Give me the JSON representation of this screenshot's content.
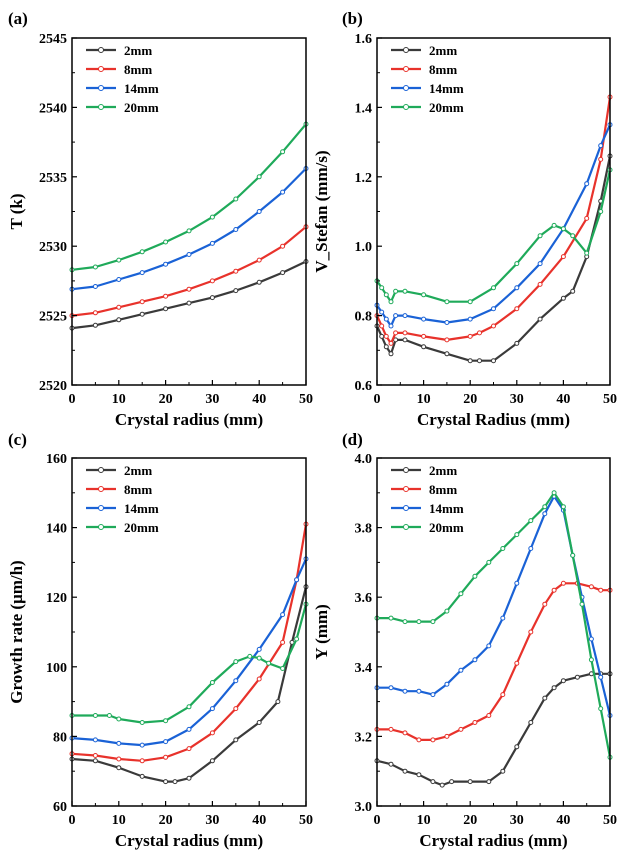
{
  "figure": {
    "background": "#ffffff"
  },
  "panel_labels": [
    "(a)",
    "(b)",
    "(c)",
    "(d)"
  ],
  "chart_data": [
    {
      "type": "line",
      "panel_label": "(a)",
      "xlabel": "Crystal radius (mm)",
      "ylabel": "T (k)",
      "xlim": [
        0,
        50
      ],
      "ylim": [
        2520,
        2545
      ],
      "xticks": [
        0,
        10,
        20,
        30,
        40,
        50
      ],
      "yticks": [
        2520,
        2525,
        2530,
        2535,
        2540,
        2545
      ],
      "legend_position": "top-left",
      "series": [
        {
          "name": "2mm",
          "color": "#3a3a3a",
          "x": [
            0,
            5,
            10,
            15,
            20,
            25,
            30,
            35,
            40,
            45,
            50
          ],
          "y": [
            2524.1,
            2524.3,
            2524.7,
            2525.1,
            2525.5,
            2525.9,
            2526.3,
            2526.8,
            2527.4,
            2528.1,
            2528.9
          ]
        },
        {
          "name": "8mm",
          "color": "#e8322b",
          "x": [
            0,
            5,
            10,
            15,
            20,
            25,
            30,
            35,
            40,
            45,
            50
          ],
          "y": [
            2525.0,
            2525.2,
            2525.6,
            2526.0,
            2526.4,
            2526.9,
            2527.5,
            2528.2,
            2529.0,
            2530.0,
            2531.4
          ]
        },
        {
          "name": "14mm",
          "color": "#1a62d6",
          "x": [
            0,
            5,
            10,
            15,
            20,
            25,
            30,
            35,
            40,
            45,
            50
          ],
          "y": [
            2526.9,
            2527.1,
            2527.6,
            2528.1,
            2528.7,
            2529.4,
            2530.2,
            2531.2,
            2532.5,
            2533.9,
            2535.6
          ]
        },
        {
          "name": "20mm",
          "color": "#1faa5a",
          "x": [
            0,
            5,
            10,
            15,
            20,
            25,
            30,
            35,
            40,
            45,
            50
          ],
          "y": [
            2528.3,
            2528.5,
            2529.0,
            2529.6,
            2530.3,
            2531.1,
            2532.1,
            2533.4,
            2535.0,
            2536.8,
            2538.8
          ]
        }
      ]
    },
    {
      "type": "line",
      "panel_label": "(b)",
      "xlabel": "Crystal Radius (mm)",
      "ylabel": "V_Stefan (mm/s)",
      "xlim": [
        0,
        50
      ],
      "ylim": [
        0.6,
        1.6
      ],
      "xticks": [
        0,
        10,
        20,
        30,
        40,
        50
      ],
      "yticks": [
        0.6,
        0.8,
        1.0,
        1.2,
        1.4,
        1.6
      ],
      "legend_position": "top-left",
      "series": [
        {
          "name": "2mm",
          "color": "#3a3a3a",
          "x": [
            0,
            1,
            2,
            3,
            4,
            6,
            10,
            15,
            20,
            22,
            25,
            30,
            35,
            40,
            42,
            45,
            48,
            50
          ],
          "y": [
            0.77,
            0.74,
            0.71,
            0.69,
            0.73,
            0.73,
            0.71,
            0.69,
            0.67,
            0.67,
            0.67,
            0.72,
            0.79,
            0.85,
            0.87,
            0.97,
            1.13,
            1.26
          ]
        },
        {
          "name": "8mm",
          "color": "#e8322b",
          "x": [
            0,
            1,
            2,
            3,
            4,
            6,
            10,
            15,
            20,
            22,
            25,
            30,
            35,
            40,
            45,
            48,
            50
          ],
          "y": [
            0.8,
            0.77,
            0.74,
            0.72,
            0.75,
            0.75,
            0.74,
            0.73,
            0.74,
            0.75,
            0.77,
            0.82,
            0.89,
            0.97,
            1.08,
            1.25,
            1.43
          ]
        },
        {
          "name": "14mm",
          "color": "#1a62d6",
          "x": [
            0,
            1,
            2,
            3,
            4,
            6,
            10,
            15,
            20,
            25,
            30,
            35,
            40,
            45,
            48,
            50
          ],
          "y": [
            0.83,
            0.81,
            0.79,
            0.77,
            0.8,
            0.8,
            0.79,
            0.78,
            0.79,
            0.82,
            0.88,
            0.95,
            1.05,
            1.18,
            1.29,
            1.35
          ]
        },
        {
          "name": "20mm",
          "color": "#1faa5a",
          "x": [
            0,
            1,
            2,
            3,
            4,
            6,
            10,
            15,
            20,
            25,
            30,
            35,
            38,
            40,
            42,
            45,
            48,
            50
          ],
          "y": [
            0.9,
            0.88,
            0.86,
            0.84,
            0.87,
            0.87,
            0.86,
            0.84,
            0.84,
            0.88,
            0.95,
            1.03,
            1.06,
            1.05,
            1.03,
            0.98,
            1.1,
            1.22
          ]
        }
      ]
    },
    {
      "type": "line",
      "panel_label": "(c)",
      "xlabel": "Crystal radius (mm)",
      "ylabel": "Growth rate (μm/h)",
      "xlim": [
        0,
        50
      ],
      "ylim": [
        60,
        160
      ],
      "xticks": [
        0,
        10,
        20,
        30,
        40,
        50
      ],
      "yticks": [
        60,
        80,
        100,
        120,
        140,
        160
      ],
      "legend_position": "top-right",
      "series": [
        {
          "name": "2mm",
          "color": "#3a3a3a",
          "x": [
            0,
            5,
            10,
            15,
            20,
            22,
            25,
            30,
            35,
            40,
            44,
            47,
            50
          ],
          "y": [
            73.5,
            73.0,
            71.0,
            68.5,
            67.0,
            67.0,
            68.0,
            73.0,
            79.0,
            84.0,
            90.0,
            107.0,
            123.0
          ]
        },
        {
          "name": "8mm",
          "color": "#e8322b",
          "x": [
            0,
            5,
            10,
            15,
            20,
            25,
            30,
            35,
            40,
            45,
            48,
            50
          ],
          "y": [
            75.0,
            74.5,
            73.5,
            73.0,
            74.0,
            76.5,
            81.0,
            88.0,
            96.5,
            107.0,
            125.0,
            141.0
          ]
        },
        {
          "name": "14mm",
          "color": "#1a62d6",
          "x": [
            0,
            5,
            10,
            15,
            20,
            25,
            30,
            35,
            40,
            45,
            48,
            50
          ],
          "y": [
            79.5,
            79.0,
            78.0,
            77.5,
            78.5,
            82.0,
            88.0,
            96.0,
            105.0,
            115.0,
            125.0,
            131.0
          ]
        },
        {
          "name": "20mm",
          "color": "#1faa5a",
          "x": [
            0,
            5,
            8,
            10,
            15,
            20,
            25,
            30,
            35,
            38,
            40,
            42,
            45,
            48,
            50
          ],
          "y": [
            86.0,
            86.0,
            86.0,
            85.0,
            84.0,
            84.5,
            88.5,
            95.5,
            101.5,
            103.0,
            102.5,
            101.0,
            99.5,
            108.0,
            118.0
          ]
        }
      ]
    },
    {
      "type": "line",
      "panel_label": "(d)",
      "xlabel": "Crystal radius (mm)",
      "ylabel": "Y (mm)",
      "xlim": [
        0,
        50
      ],
      "ylim": [
        3.0,
        4.0
      ],
      "xticks": [
        0,
        10,
        20,
        30,
        40,
        50
      ],
      "yticks": [
        3.0,
        3.2,
        3.4,
        3.6,
        3.8,
        4.0
      ],
      "legend_position": "top-left",
      "series": [
        {
          "name": "2mm",
          "color": "#3a3a3a",
          "x": [
            0,
            3,
            6,
            9,
            12,
            14,
            16,
            20,
            24,
            27,
            30,
            33,
            36,
            38,
            40,
            43,
            46,
            48,
            50
          ],
          "y": [
            3.13,
            3.12,
            3.1,
            3.09,
            3.07,
            3.06,
            3.07,
            3.07,
            3.07,
            3.1,
            3.17,
            3.24,
            3.31,
            3.34,
            3.36,
            3.37,
            3.38,
            3.38,
            3.38
          ]
        },
        {
          "name": "8mm",
          "color": "#e8322b",
          "x": [
            0,
            3,
            6,
            9,
            12,
            15,
            18,
            21,
            24,
            27,
            30,
            33,
            36,
            38,
            40,
            43,
            46,
            48,
            50
          ],
          "y": [
            3.22,
            3.22,
            3.21,
            3.19,
            3.19,
            3.2,
            3.22,
            3.24,
            3.26,
            3.32,
            3.41,
            3.5,
            3.58,
            3.62,
            3.64,
            3.64,
            3.63,
            3.62,
            3.62
          ]
        },
        {
          "name": "14mm",
          "color": "#1a62d6",
          "x": [
            0,
            3,
            6,
            9,
            12,
            15,
            18,
            21,
            24,
            27,
            30,
            33,
            36,
            38,
            40,
            42,
            44,
            46,
            48,
            50
          ],
          "y": [
            3.34,
            3.34,
            3.33,
            3.33,
            3.32,
            3.35,
            3.39,
            3.42,
            3.46,
            3.54,
            3.64,
            3.74,
            3.84,
            3.89,
            3.85,
            3.72,
            3.6,
            3.48,
            3.37,
            3.26
          ]
        },
        {
          "name": "20mm",
          "color": "#1faa5a",
          "x": [
            0,
            3,
            6,
            9,
            12,
            15,
            18,
            21,
            24,
            27,
            30,
            33,
            36,
            38,
            40,
            42,
            44,
            46,
            48,
            50
          ],
          "y": [
            3.54,
            3.54,
            3.53,
            3.53,
            3.53,
            3.56,
            3.61,
            3.66,
            3.7,
            3.74,
            3.78,
            3.82,
            3.86,
            3.9,
            3.86,
            3.72,
            3.58,
            3.42,
            3.28,
            3.14
          ]
        }
      ]
    }
  ]
}
